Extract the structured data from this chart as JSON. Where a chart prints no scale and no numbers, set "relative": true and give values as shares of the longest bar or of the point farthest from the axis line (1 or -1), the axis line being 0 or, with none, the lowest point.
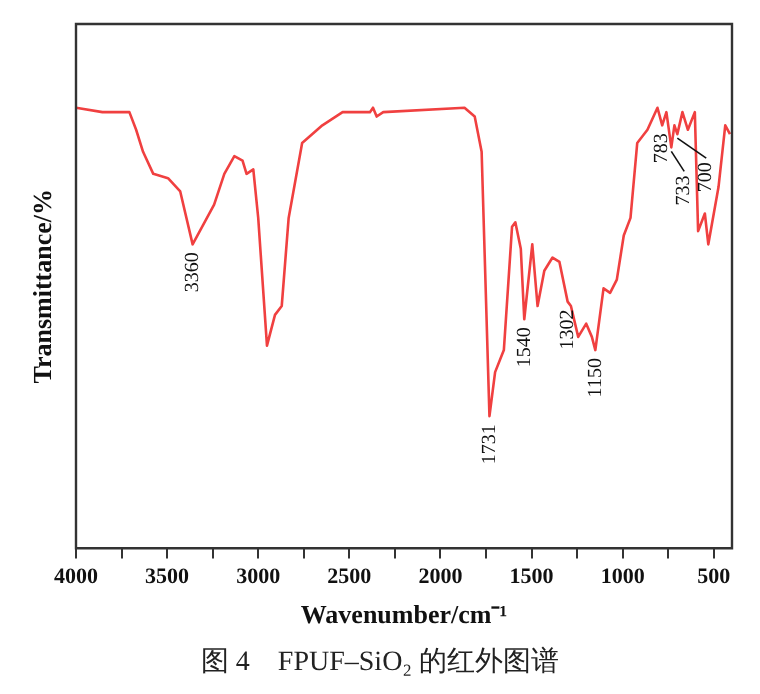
{
  "chart_data": {
    "type": "line",
    "relative": true,
    "xlabel": "Wavenumber/cm⁻¹",
    "ylabel": "Transmittance/%",
    "x": [
      4000,
      3855,
      3780,
      3725,
      3707,
      3670,
      3632,
      3576,
      3495,
      3428,
      3360,
      3242,
      3186,
      3131,
      3086,
      3064,
      3027,
      3000,
      2952,
      2908,
      2871,
      2833,
      2759,
      2648,
      2537,
      2387,
      2370,
      2350,
      2314,
      1868,
      1812,
      1774,
      1731,
      1700,
      1652,
      1607,
      1589,
      1559,
      1540,
      1496,
      1467,
      1430,
      1385,
      1347,
      1302,
      1284,
      1244,
      1200,
      1169,
      1150,
      1105,
      1069,
      1032,
      994,
      957,
      920,
      864,
      809,
      783,
      760,
      733,
      716,
      700,
      672,
      642,
      604,
      586,
      549,
      530,
      474,
      437,
      411
    ],
    "series": [
      {
        "color": "#f04040",
        "values": [
          1.0,
          0.99,
          0.99,
          0.99,
          0.99,
          0.95,
          0.9,
          0.85,
          0.84,
          0.81,
          0.69,
          0.78,
          0.85,
          0.89,
          0.88,
          0.85,
          0.86,
          0.75,
          0.46,
          0.53,
          0.55,
          0.75,
          0.92,
          0.96,
          0.99,
          0.99,
          1.0,
          0.98,
          0.99,
          1.0,
          0.98,
          0.9,
          0.3,
          0.4,
          0.45,
          0.73,
          0.74,
          0.68,
          0.52,
          0.69,
          0.55,
          0.63,
          0.66,
          0.65,
          0.56,
          0.55,
          0.48,
          0.51,
          0.48,
          0.45,
          0.59,
          0.58,
          0.61,
          0.71,
          0.75,
          0.92,
          0.95,
          1.0,
          0.96,
          0.99,
          0.91,
          0.96,
          0.94,
          0.99,
          0.95,
          0.99,
          0.72,
          0.76,
          0.69,
          0.82,
          0.96,
          0.94
        ]
      }
    ],
    "xlim": [
      4000,
      400
    ],
    "xticks": [
      4000,
      {
        "value": 3750,
        "label": null
      },
      3500,
      {
        "value": 3250,
        "label": null
      },
      3000,
      {
        "value": 2750,
        "label": null
      },
      2500,
      {
        "value": 2250,
        "label": null
      },
      2000,
      {
        "value": 1750,
        "label": null
      },
      1500,
      {
        "value": 1250,
        "label": null
      },
      1000,
      {
        "value": 750,
        "label": null
      },
      500
    ],
    "grid": false,
    "legend": false,
    "annotations": [
      {
        "text": "3360",
        "x": 3360,
        "y": 0.69
      },
      {
        "text": "1731",
        "x": 1731,
        "y": 0.3
      },
      {
        "text": "1540",
        "x": 1540,
        "y": 0.52
      },
      {
        "text": "1302",
        "x": 1302,
        "y": 0.56
      },
      {
        "text": "1150",
        "x": 1150,
        "y": 0.45
      },
      {
        "text": "783",
        "x": 783,
        "y": 0.96
      },
      {
        "text": "733",
        "x": 733,
        "y": 0.91
      },
      {
        "text": "700",
        "x": 700,
        "y": 0.94
      },
      "图 4　FPUF–SiO₂ 的红外图谱"
    ]
  }
}
